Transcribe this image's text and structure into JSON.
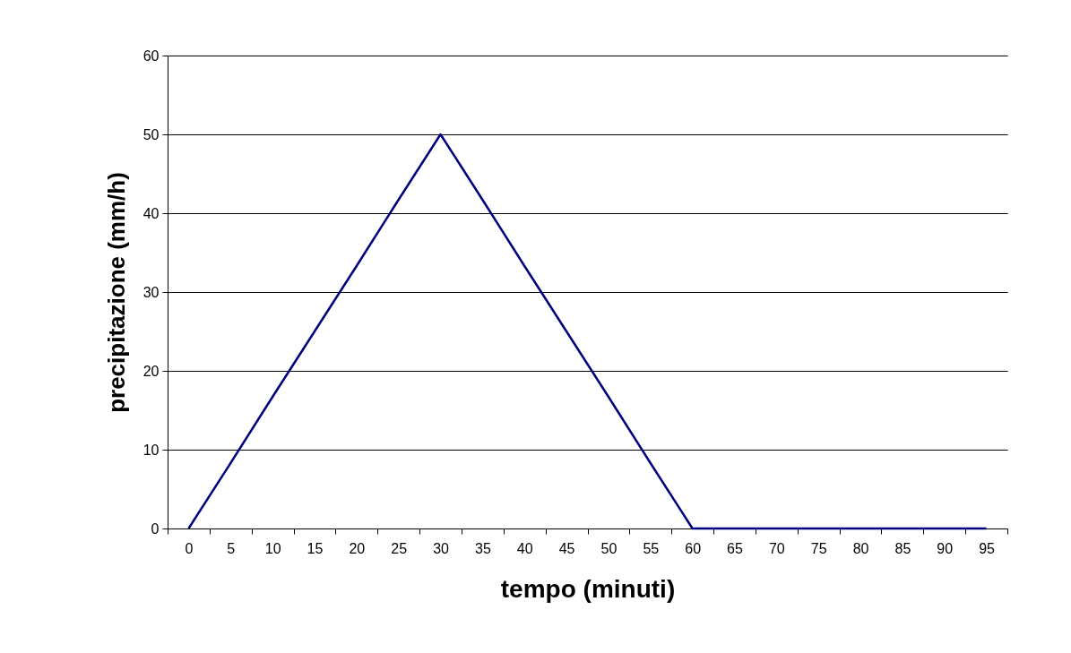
{
  "chart_data": {
    "type": "line",
    "xlabel": "tempo (minuti)",
    "ylabel": "precipitazione (mm/h)",
    "categories": [
      "0",
      "5",
      "10",
      "15",
      "20",
      "25",
      "30",
      "35",
      "40",
      "45",
      "50",
      "55",
      "60",
      "65",
      "70",
      "75",
      "80",
      "85",
      "90",
      "95"
    ],
    "series": [
      {
        "color": "#000080",
        "values": [
          0,
          8.3,
          16.7,
          25,
          33.3,
          41.7,
          50,
          41.7,
          33.3,
          25,
          16.7,
          8.3,
          0,
          0,
          0,
          0,
          0,
          0,
          0,
          0
        ]
      }
    ],
    "ylim": [
      0,
      60
    ],
    "yticks": [
      0,
      10,
      20,
      30,
      40,
      50,
      60
    ],
    "grid": "y"
  }
}
